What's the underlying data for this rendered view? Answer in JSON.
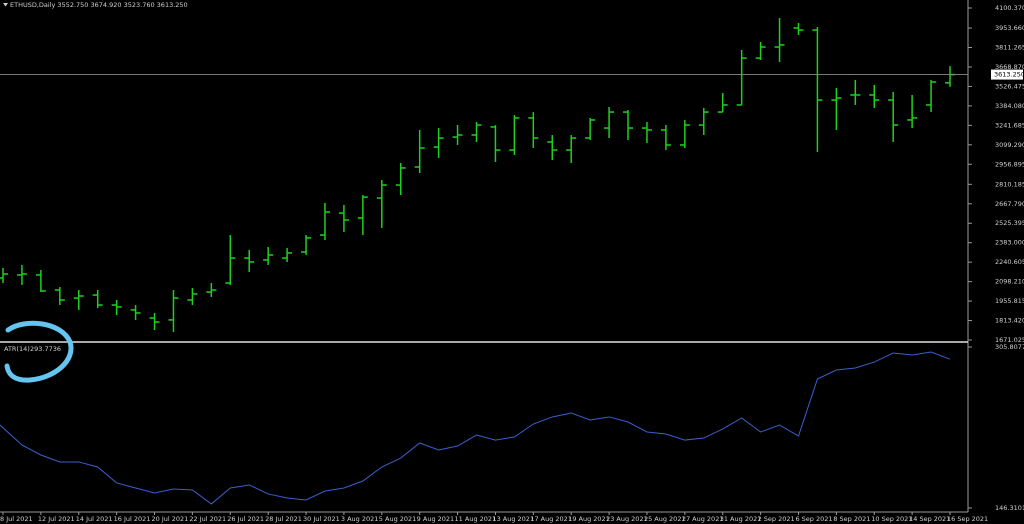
{
  "chart_data": [
    {
      "type": "ohlc",
      "title": "ETHUSD,Daily  3552.750 3674.920 3523.760 3613.250",
      "categories": [
        "8 Jul 2021",
        null,
        "12 Jul 2021",
        null,
        "14 Jul 2021",
        null,
        "16 Jul 2021",
        null,
        "20 Jul 2021",
        null,
        "22 Jul 2021",
        null,
        "26 Jul 2021",
        null,
        "28 Jul 2021",
        null,
        "30 Jul 2021",
        null,
        "3 Aug 2021",
        null,
        "5 Aug 2021",
        null,
        "9 Aug 2021",
        null,
        "11 Aug 2021",
        null,
        "13 Aug 2021",
        null,
        "17 Aug 2021",
        null,
        "19 Aug 2021",
        null,
        "23 Aug 2021",
        null,
        "25 Aug 2021",
        null,
        "27 Aug 2021",
        null,
        "31 Aug 2021",
        null,
        "2 Sep 2021",
        null,
        "6 Sep 2021",
        null,
        "8 Sep 2021",
        null,
        "10 Sep 2021",
        null,
        "14 Sep 2021",
        null,
        "16 Sep 2021"
      ],
      "open": [
        2125,
        2147,
        2147,
        2037,
        1978,
        2000,
        1927,
        1891,
        1832,
        1818,
        1964,
        2022,
        2088,
        2271,
        2257,
        2271,
        2315,
        2439,
        2600,
        2564,
        2710,
        2805,
        2937,
        3083,
        3156,
        3171,
        3230,
        3061,
        3296,
        3120,
        3061,
        3149,
        3222,
        3339,
        3222,
        3208,
        3098,
        3244,
        3339,
        3391,
        3734,
        3815,
        3954,
        3939,
        3427,
        3464,
        3464,
        3427,
        3281,
        3391,
        3552.75
      ],
      "high": [
        2198,
        2220,
        2183,
        2059,
        2037,
        2037,
        1964,
        1927,
        1869,
        2037,
        2052,
        2088,
        2439,
        2330,
        2352,
        2344,
        2439,
        2674,
        2659,
        2732,
        2842,
        2966,
        3208,
        3222,
        3244,
        3266,
        3244,
        3317,
        3339,
        3171,
        3171,
        3296,
        3376,
        3354,
        3266,
        3244,
        3281,
        3369,
        3478,
        3793,
        3852,
        4027,
        3991,
        3961,
        3515,
        3574,
        3537,
        3486,
        3464,
        3574,
        3674.92
      ],
      "low": [
        2088,
        2074,
        2022,
        1927,
        1891,
        1905,
        1854,
        1818,
        1744,
        1730,
        1927,
        1986,
        2074,
        2169,
        2220,
        2242,
        2293,
        2403,
        2461,
        2439,
        2491,
        2732,
        2893,
        3003,
        3098,
        3120,
        2974,
        3025,
        3076,
        2988,
        2966,
        3135,
        3149,
        3135,
        3113,
        3061,
        3076,
        3171,
        3339,
        3391,
        3720,
        3705,
        3903,
        3047,
        3208,
        3391,
        3369,
        3120,
        3222,
        3339,
        3523.76
      ],
      "close": [
        2154,
        2154,
        2030,
        1964,
        1993,
        1927,
        1913,
        1869,
        1803,
        1978,
        2008,
        2037,
        2271,
        2242,
        2293,
        2308,
        2418,
        2608,
        2549,
        2717,
        2805,
        2930,
        3076,
        3149,
        3171,
        3244,
        3061,
        3296,
        3149,
        3061,
        3149,
        3281,
        3339,
        3222,
        3208,
        3098,
        3244,
        3339,
        3391,
        3734,
        3815,
        3830,
        3939,
        3427,
        3442,
        3464,
        3427,
        3244,
        3296,
        3559,
        3613.25
      ],
      "color": "#1fd01f",
      "ylim": [
        1656.5,
        4158.9
      ],
      "yticks": [
        {
          "value": 4100.37,
          "label": "4100.370"
        },
        {
          "value": 3953.66,
          "label": "3953.660"
        },
        {
          "value": 3811.265,
          "label": "3811.265"
        },
        {
          "value": 3668.87,
          "label": "3668.870"
        },
        {
          "value": 3526.475,
          "label": "3526.475"
        },
        {
          "value": 3384.08,
          "label": "3384.080"
        },
        {
          "value": 3241.685,
          "label": "3241.685"
        },
        {
          "value": 3099.29,
          "label": "3099.290"
        },
        {
          "value": 2956.895,
          "label": "2956.895"
        },
        {
          "value": 2810.185,
          "label": "2810.185"
        },
        {
          "value": 2667.79,
          "label": "2667.790"
        },
        {
          "value": 2525.395,
          "label": "2525.395"
        },
        {
          "value": 2383,
          "label": "2383.000"
        },
        {
          "value": 2240.605,
          "label": "2240.605"
        },
        {
          "value": 2098.21,
          "label": "2098.210"
        },
        {
          "value": 1955.815,
          "label": "1955.815"
        },
        {
          "value": 1813.42,
          "label": "1813.420"
        },
        {
          "value": 1671.025,
          "label": "1671.025"
        }
      ],
      "current_price": {
        "value": 3613.25,
        "label": "3613.250"
      }
    },
    {
      "type": "line",
      "series": [
        {
          "name": "ATR(14)",
          "color": "#3a5fcd",
          "values": [
            228.5,
            208.7,
            198.8,
            191.9,
            191.9,
            186.9,
            171.1,
            166.1,
            161.2,
            165.1,
            164.1,
            150.3,
            166.1,
            169.1,
            160.2,
            156.2,
            154.2,
            163.1,
            166.1,
            173.0,
            186.9,
            195.8,
            210.7,
            203.8,
            207.7,
            218.6,
            213.6,
            216.6,
            229.5,
            236.5,
            240.4,
            233.5,
            236.5,
            231.5,
            221.6,
            219.6,
            213.6,
            215.6,
            224.6,
            235.5,
            221.6,
            228.5,
            217.6,
            274.1,
            283.0,
            285.0,
            290.9,
            299.9,
            297.9,
            300.9,
            293.7736
          ]
        }
      ],
      "ylim": [
        142.3,
        308.8
      ],
      "yticks": [
        305.8077,
        146.3101
      ]
    }
  ]
}
